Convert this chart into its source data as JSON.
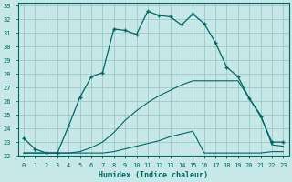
{
  "xlabel": "Humidex (Indice chaleur)",
  "bg_color": "#c6e8e6",
  "grid_color": "#9ec8c8",
  "line_color": "#006666",
  "xlim": [
    -0.5,
    23.5
  ],
  "ylim": [
    22,
    33.2
  ],
  "xticks": [
    0,
    1,
    2,
    3,
    4,
    5,
    6,
    7,
    8,
    9,
    10,
    11,
    12,
    13,
    14,
    15,
    16,
    17,
    18,
    19,
    20,
    21,
    22,
    23
  ],
  "yticks": [
    22,
    23,
    24,
    25,
    26,
    27,
    28,
    29,
    30,
    31,
    32,
    33
  ],
  "line1_x": [
    0,
    1,
    2,
    3,
    4,
    5,
    6,
    7,
    8,
    9,
    10,
    11,
    12,
    13,
    14,
    15,
    16,
    17,
    18,
    19,
    20,
    21,
    22,
    23
  ],
  "line1_y": [
    23.3,
    22.5,
    22.2,
    22.2,
    24.2,
    26.3,
    27.8,
    28.1,
    31.3,
    31.2,
    30.9,
    32.6,
    32.3,
    32.2,
    31.6,
    32.4,
    31.7,
    30.3,
    28.5,
    27.8,
    26.2,
    24.9,
    23.0,
    23.0
  ],
  "line2_x": [
    0,
    1,
    2,
    3,
    4,
    5,
    6,
    7,
    8,
    9,
    10,
    11,
    12,
    13,
    14,
    15,
    16,
    17,
    18,
    19,
    20,
    21,
    22,
    23
  ],
  "line2_y": [
    22.2,
    22.2,
    22.2,
    22.2,
    22.2,
    22.2,
    22.2,
    22.2,
    22.3,
    22.5,
    22.7,
    22.9,
    23.1,
    23.4,
    23.6,
    23.8,
    22.2,
    22.2,
    22.2,
    22.2,
    22.2,
    22.2,
    22.3,
    22.3
  ],
  "line3_x": [
    0,
    1,
    2,
    3,
    4,
    5,
    6,
    7,
    8,
    9,
    10,
    11,
    12,
    13,
    14,
    15,
    16,
    17,
    18,
    19,
    20,
    21,
    22,
    23
  ],
  "line3_y": [
    22.2,
    22.2,
    22.2,
    22.2,
    22.2,
    22.3,
    22.6,
    23.0,
    23.7,
    24.6,
    25.3,
    25.9,
    26.4,
    26.8,
    27.2,
    27.5,
    27.5,
    27.5,
    27.5,
    27.5,
    26.2,
    25.0,
    22.8,
    22.7
  ]
}
